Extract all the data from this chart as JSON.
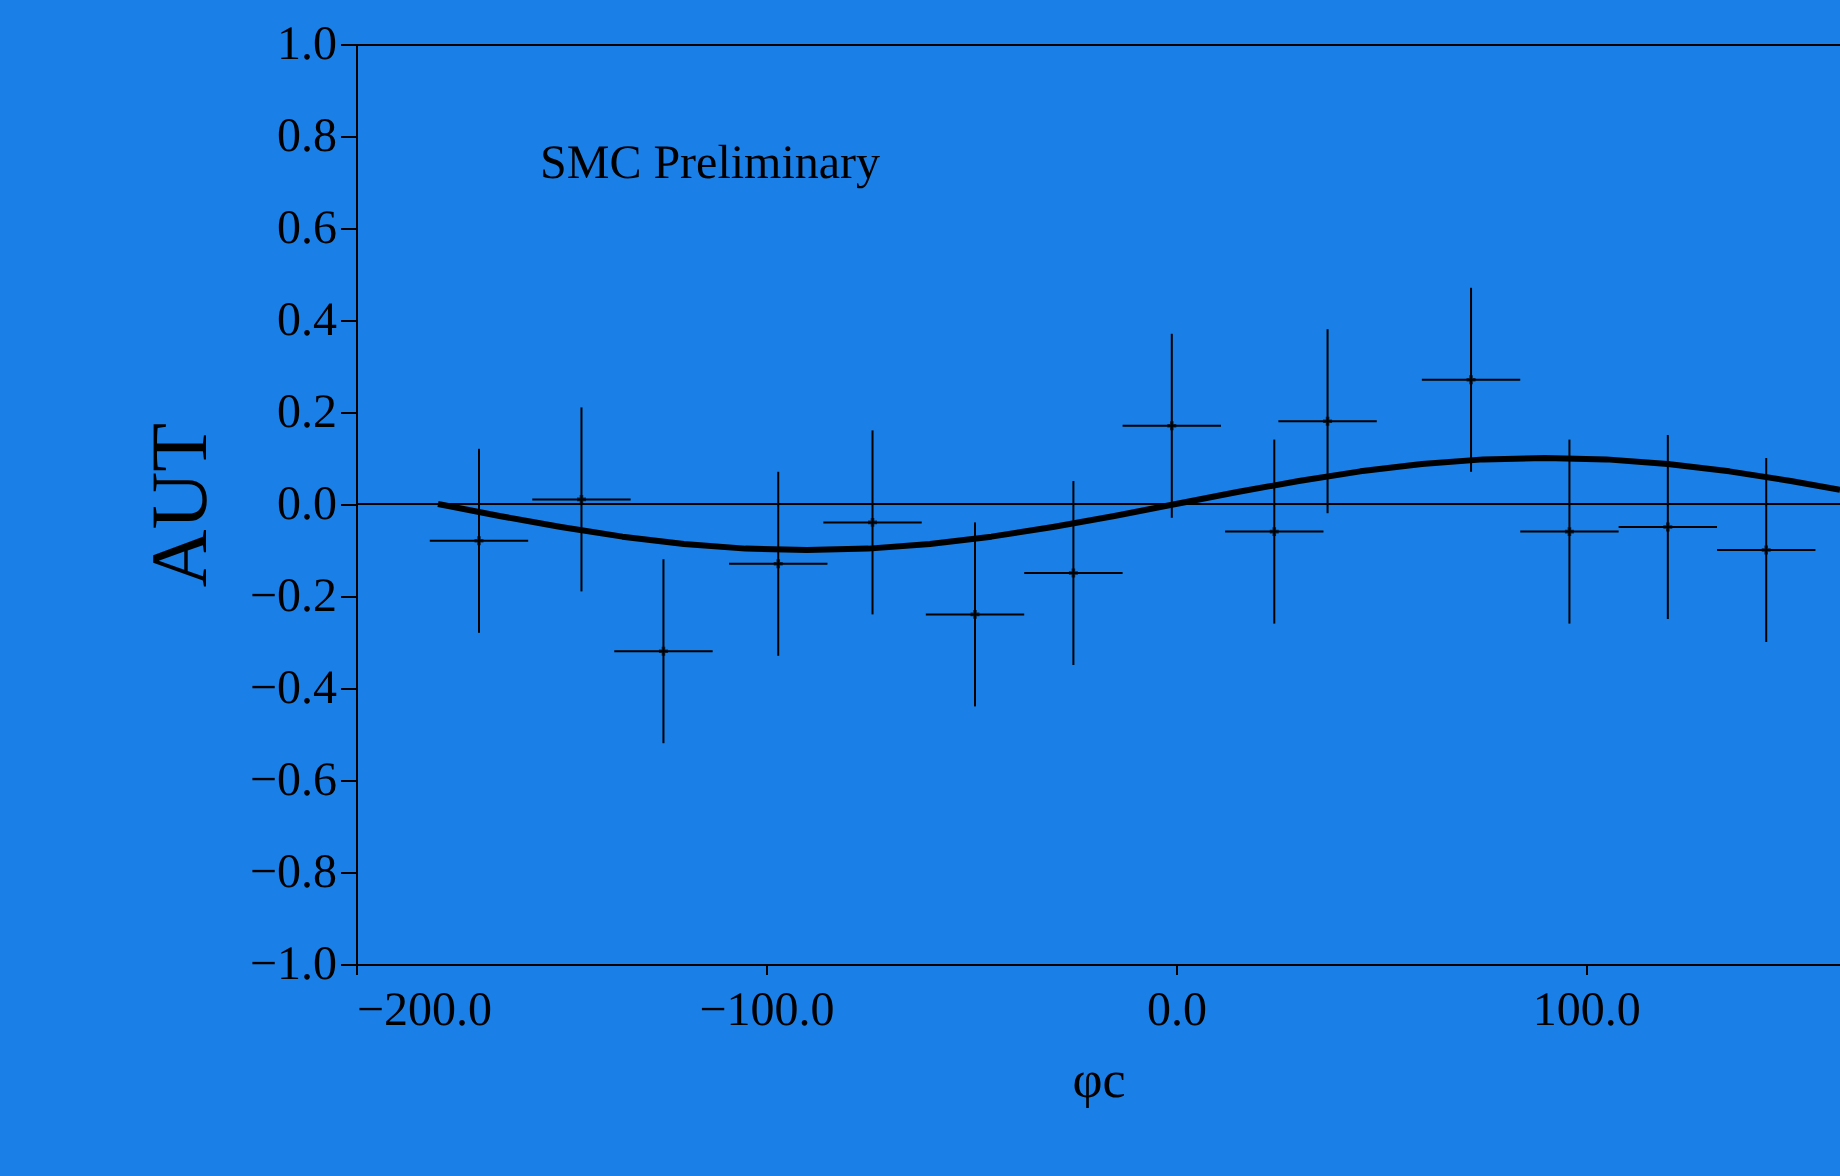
{
  "chart_data": {
    "type": "scatter",
    "xlabel": "φc",
    "ylabel": "AUT",
    "annotations": [
      "SMC Preliminary"
    ],
    "series": [
      {
        "color": "#000000",
        "marker": "cross",
        "x": [
          -170,
          -145,
          -125,
          -97,
          -74,
          -49,
          -25,
          -1,
          24,
          37,
          72,
          96,
          120,
          144
        ],
        "values": [
          -0.08,
          0.01,
          -0.32,
          -0.13,
          -0.04,
          -0.24,
          -0.15,
          0.17,
          -0.06,
          0.18,
          0.27,
          -0.06,
          -0.05,
          -0.1
        ],
        "errors": [
          0.2,
          0.2,
          0.2,
          0.2,
          0.2,
          0.2,
          0.2,
          0.2,
          0.2,
          0.2,
          0.2,
          0.2,
          0.2,
          0.2
        ],
        "xerrors": [
          12,
          12,
          12,
          12,
          12,
          12,
          12,
          12,
          12,
          12,
          12,
          12,
          12,
          12
        ]
      },
      {
        "type": "line",
        "color": "#000000",
        "line_style": "solid",
        "x": [
          -180,
          -165,
          -150,
          -135,
          -120,
          -105,
          -90,
          -75,
          -60,
          -45,
          -30,
          -15,
          0,
          15,
          30,
          45,
          60,
          75,
          90,
          105,
          120,
          135,
          150,
          162
        ],
        "values": [
          0.0,
          -0.026,
          -0.05,
          -0.071,
          -0.087,
          -0.097,
          -0.1,
          -0.097,
          -0.087,
          -0.071,
          -0.05,
          -0.026,
          0.0,
          0.026,
          0.05,
          0.071,
          0.087,
          0.097,
          0.1,
          0.097,
          0.087,
          0.071,
          0.05,
          0.031
        ]
      }
    ],
    "ref_lines": [
      {
        "axis": "y",
        "value": 0,
        "color": "#000000"
      }
    ],
    "xlim": [
      -200,
      162
    ],
    "xticks": [
      {
        "value": -200,
        "label": "−200.0"
      },
      {
        "value": -100,
        "label": "−100.0"
      },
      {
        "value": 0,
        "label": "0.0"
      },
      {
        "value": 100,
        "label": "100.0"
      }
    ],
    "ylim": [
      -1,
      1
    ],
    "yticks": [
      {
        "value": -1,
        "label": "−1.0"
      },
      {
        "value": -0.8,
        "label": "−0.8"
      },
      {
        "value": -0.6,
        "label": "−0.6"
      },
      {
        "value": -0.4,
        "label": "−0.4"
      },
      {
        "value": -0.2,
        "label": "−0.2"
      },
      {
        "value": 0,
        "label": "0.0"
      },
      {
        "value": 0.2,
        "label": "0.2"
      },
      {
        "value": 0.4,
        "label": "0.4"
      },
      {
        "value": 0.6,
        "label": "0.6"
      },
      {
        "value": 0.8,
        "label": "0.8"
      },
      {
        "value": 1,
        "label": "1.0"
      }
    ],
    "grid": false
  }
}
